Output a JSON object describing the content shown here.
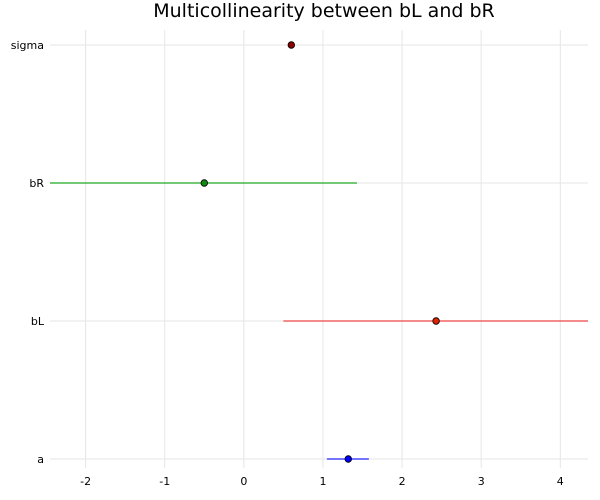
{
  "chart_data": {
    "type": "scatter",
    "title": "Multicollinearity between bL and bR",
    "xlabel": "",
    "ylabel": "",
    "xlim": [
      -2.45,
      4.35
    ],
    "xticks": [
      -2,
      -1,
      0,
      1,
      2,
      3,
      4
    ],
    "xtick_labels": [
      "-2",
      "-1",
      "0",
      "1",
      "2",
      "3",
      "4"
    ],
    "grid": true,
    "legend": "none",
    "categories": [
      "a",
      "bL",
      "bR",
      "sigma"
    ],
    "series": [
      {
        "category": "a",
        "estimate": 1.32,
        "lower": 1.05,
        "upper": 1.58,
        "color": "#2020ff",
        "marker_color": "#0000ff"
      },
      {
        "category": "bL",
        "estimate": 2.43,
        "lower": 0.5,
        "upper": 4.35,
        "color": "#ee4444",
        "marker_color": "#dd2200"
      },
      {
        "category": "bR",
        "estimate": -0.5,
        "lower": -2.45,
        "upper": 1.43,
        "color": "#22aa22",
        "marker_color": "#118811"
      },
      {
        "category": "sigma",
        "estimate": 0.6,
        "lower": 0.6,
        "upper": 0.6,
        "color": "#880000",
        "marker_color": "#880000"
      }
    ]
  }
}
